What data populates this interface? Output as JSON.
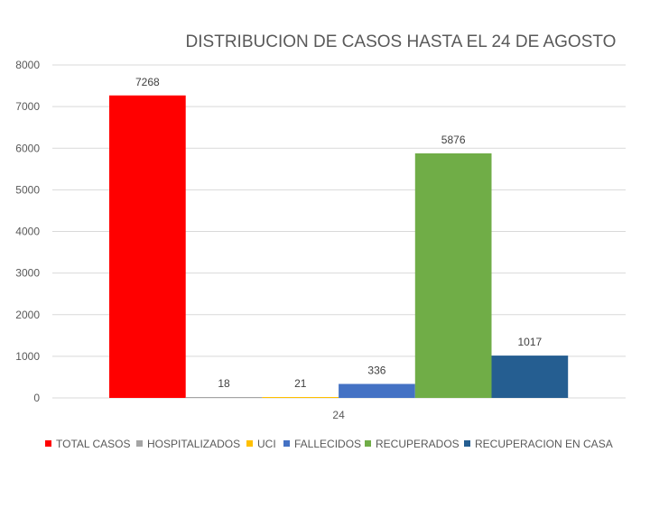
{
  "chart_data": {
    "type": "bar",
    "title": "DISTRIBUCION DE CASOS HASTA EL 24 DE AGOSTO",
    "categories": [
      "24"
    ],
    "ylim": [
      0,
      8000
    ],
    "yticks": [
      0,
      1000,
      2000,
      3000,
      4000,
      5000,
      6000,
      7000,
      8000
    ],
    "grid": true,
    "legend_position": "bottom",
    "series": [
      {
        "name": "TOTAL CASOS",
        "values": [
          7268
        ],
        "color": "#ff0000"
      },
      {
        "name": "HOSPITALIZADOS",
        "values": [
          18
        ],
        "color": "#a5a5a5"
      },
      {
        "name": "UCI",
        "values": [
          21
        ],
        "color": "#ffc000"
      },
      {
        "name": "FALLECIDOS",
        "values": [
          336
        ],
        "color": "#4472c4"
      },
      {
        "name": "RECUPERADOS",
        "values": [
          5876
        ],
        "color": "#70ad47"
      },
      {
        "name": "RECUPERACION EN CASA",
        "values": [
          1017
        ],
        "color": "#255e91"
      }
    ]
  }
}
